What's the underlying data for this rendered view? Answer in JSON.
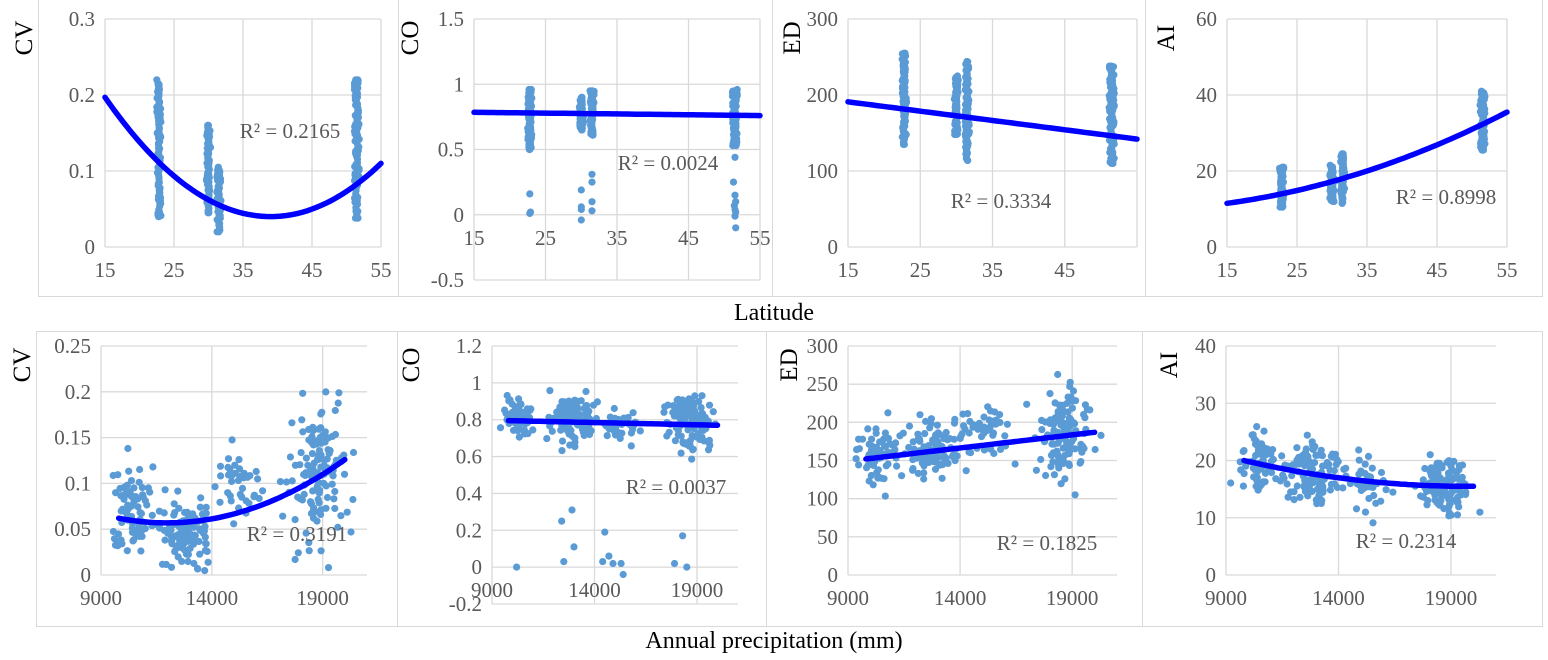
{
  "figure": {
    "row_labels": [
      "Latitude",
      "Annual precipitation (mm)"
    ]
  },
  "colors": {
    "points": "#5b9bd5",
    "trendline": "#0000ff",
    "grid": "#d9d9d9",
    "tick_text": "#595959",
    "axis_title": "#000000"
  },
  "chart_data": [
    {
      "type": "scatter",
      "ylabel": "CV",
      "xlabel": "Latitude",
      "xlim": [
        15,
        55
      ],
      "xticks": [
        15,
        25,
        35,
        45,
        55
      ],
      "ylim": [
        0,
        0.3
      ],
      "yticks": [
        0,
        0.1,
        0.2,
        0.3
      ],
      "r2_label": "R² = 0.2165",
      "trend": {
        "kind": "quadratic",
        "points": [
          [
            15,
            0.197
          ],
          [
            39,
            0.04
          ],
          [
            55,
            0.11
          ]
        ]
      },
      "clusters": [
        {
          "x": 22.8,
          "xspread": 0.3,
          "ymin": 0.04,
          "ymax": 0.22,
          "n": 60
        },
        {
          "x": 30,
          "xspread": 0.3,
          "ymin": 0.045,
          "ymax": 0.16,
          "n": 30
        },
        {
          "x": 31.5,
          "xspread": 0.3,
          "ymin": 0.02,
          "ymax": 0.105,
          "n": 35
        },
        {
          "x": 51.5,
          "xspread": 0.35,
          "ymin": 0.038,
          "ymax": 0.22,
          "n": 70
        }
      ]
    },
    {
      "type": "scatter",
      "ylabel": "CO",
      "xlabel": "Latitude",
      "xlim": [
        15,
        55
      ],
      "xticks": [
        15,
        25,
        35,
        45,
        55
      ],
      "ylim": [
        -0.5,
        1.5
      ],
      "yticks": [
        -0.5,
        0,
        0.5,
        1,
        1.5
      ],
      "r2_label": "R² = 0.0024",
      "trend": {
        "kind": "linear",
        "points": [
          [
            15,
            0.785
          ],
          [
            55,
            0.76
          ]
        ]
      },
      "clusters": [
        {
          "x": 22.8,
          "xspread": 0.3,
          "ymin": 0.5,
          "ymax": 0.96,
          "n": 50
        },
        {
          "x": 30,
          "xspread": 0.3,
          "ymin": 0.65,
          "ymax": 0.9,
          "n": 25
        },
        {
          "x": 31.5,
          "xspread": 0.3,
          "ymin": 0.61,
          "ymax": 0.95,
          "n": 30
        },
        {
          "x": 51.5,
          "xspread": 0.35,
          "ymin": 0.53,
          "ymax": 0.96,
          "n": 60
        }
      ],
      "outliers": [
        [
          22.8,
          0.16
        ],
        [
          22.8,
          0.01
        ],
        [
          22.9,
          0.02
        ],
        [
          30,
          0.19
        ],
        [
          30,
          0.06
        ],
        [
          30,
          0.04
        ],
        [
          30,
          -0.04
        ],
        [
          31.5,
          0.31
        ],
        [
          31.5,
          0.25
        ],
        [
          31.5,
          0.1
        ],
        [
          31.5,
          0.03
        ],
        [
          51.5,
          0.44
        ],
        [
          51.3,
          0.25
        ],
        [
          51.5,
          0.15
        ],
        [
          51.6,
          0.1
        ],
        [
          51.4,
          0.07
        ],
        [
          51.5,
          0.04
        ],
        [
          51.6,
          0.02
        ],
        [
          51.5,
          -0.01
        ],
        [
          51.6,
          -0.1
        ]
      ]
    },
    {
      "type": "scatter",
      "ylabel": "ED",
      "xlabel": "Latitude",
      "xlim": [
        15,
        55
      ],
      "xticks": [
        15,
        25,
        35,
        45
      ],
      "ylim": [
        0,
        300
      ],
      "yticks": [
        0,
        100,
        200,
        300
      ],
      "r2_label": "R² = 0.3334",
      "trend": {
        "kind": "linear",
        "points": [
          [
            15,
            191
          ],
          [
            55,
            142
          ]
        ]
      },
      "clusters": [
        {
          "x": 22.8,
          "xspread": 0.3,
          "ymin": 135,
          "ymax": 255,
          "n": 55
        },
        {
          "x": 30,
          "xspread": 0.3,
          "ymin": 148,
          "ymax": 225,
          "n": 30
        },
        {
          "x": 31.5,
          "xspread": 0.3,
          "ymin": 114,
          "ymax": 244,
          "n": 40
        },
        {
          "x": 51.5,
          "xspread": 0.35,
          "ymin": 110,
          "ymax": 238,
          "n": 65
        }
      ]
    },
    {
      "type": "scatter",
      "ylabel": "AI",
      "xlabel": "Latitude",
      "xlim": [
        15,
        55
      ],
      "xticks": [
        15,
        25,
        35,
        45,
        55
      ],
      "ylim": [
        0,
        60
      ],
      "yticks": [
        0,
        20,
        40,
        60
      ],
      "r2_label": "R² = 0.8998",
      "trend": {
        "kind": "quadratic",
        "points": [
          [
            15,
            11.5
          ],
          [
            35,
            20
          ],
          [
            55,
            35.5
          ]
        ]
      },
      "clusters": [
        {
          "x": 22.8,
          "xspread": 0.3,
          "ymin": 10.5,
          "ymax": 21,
          "n": 45
        },
        {
          "x": 30,
          "xspread": 0.3,
          "ymin": 12,
          "ymax": 21.5,
          "n": 25
        },
        {
          "x": 31.5,
          "xspread": 0.3,
          "ymin": 11.5,
          "ymax": 24.5,
          "n": 30
        },
        {
          "x": 51.5,
          "xspread": 0.35,
          "ymin": 25.5,
          "ymax": 41,
          "n": 60
        }
      ]
    },
    {
      "type": "scatter",
      "ylabel": "CV",
      "xlabel": "Annual precipitation (mm)",
      "xlim": [
        9000,
        21000
      ],
      "xticks": [
        9000,
        14000,
        19000
      ],
      "ylim": [
        0,
        0.25
      ],
      "yticks": [
        0,
        0.05,
        0.1,
        0.15,
        0.2,
        0.25
      ],
      "r2_label": "R² = 0.3191",
      "trend": {
        "kind": "quadratic",
        "points": [
          [
            9800,
            0.062
          ],
          [
            12300,
            0.057
          ],
          [
            20000,
            0.126
          ]
        ]
      },
      "clusters": [
        {
          "cx": 10400,
          "sx": 450,
          "cy": 0.072,
          "sy": 0.022,
          "n": 70
        },
        {
          "cx": 12800,
          "sx": 600,
          "cy": 0.045,
          "sy": 0.016,
          "n": 120
        },
        {
          "cx": 15200,
          "sx": 500,
          "cy": 0.1,
          "sy": 0.025,
          "n": 40
        },
        {
          "cx": 18800,
          "sx": 650,
          "cy": 0.11,
          "sy": 0.04,
          "n": 130
        }
      ]
    },
    {
      "type": "scatter",
      "ylabel": "CO",
      "xlabel": "Annual precipitation (mm)",
      "xlim": [
        9000,
        21000
      ],
      "xticks": [
        9000,
        14000,
        19000
      ],
      "ylim": [
        -0.2,
        1.2
      ],
      "yticks": [
        -0.2,
        0,
        0.2,
        0.4,
        0.6,
        0.8,
        1,
        1.2
      ],
      "r2_label": "R² = 0.0037",
      "trend": {
        "kind": "linear",
        "points": [
          [
            9800,
            0.795
          ],
          [
            20000,
            0.77
          ]
        ]
      },
      "clusters": [
        {
          "cx": 10300,
          "sx": 400,
          "cy": 0.82,
          "sy": 0.05,
          "n": 60
        },
        {
          "cx": 12900,
          "sx": 600,
          "cy": 0.82,
          "sy": 0.06,
          "n": 110
        },
        {
          "cx": 15300,
          "sx": 450,
          "cy": 0.78,
          "sy": 0.05,
          "n": 40
        },
        {
          "cx": 18700,
          "sx": 550,
          "cy": 0.8,
          "sy": 0.08,
          "n": 120
        }
      ],
      "outliers": [
        [
          10200,
          0.0
        ],
        [
          12400,
          0.25
        ],
        [
          12500,
          0.03
        ],
        [
          12900,
          0.31
        ],
        [
          13000,
          0.11
        ],
        [
          14500,
          0.19
        ],
        [
          14400,
          0.03
        ],
        [
          14700,
          0.06
        ],
        [
          14900,
          0.02
        ],
        [
          15300,
          0.02
        ],
        [
          15400,
          -0.04
        ],
        [
          17900,
          0.02
        ],
        [
          18300,
          0.17
        ],
        [
          18500,
          0.0
        ]
      ]
    },
    {
      "type": "scatter",
      "ylabel": "ED",
      "xlabel": "Annual precipitation (mm)",
      "xlim": [
        9000,
        21000
      ],
      "xticks": [
        9000,
        14000,
        19000
      ],
      "ylim": [
        0,
        300
      ],
      "yticks": [
        0,
        50,
        100,
        150,
        200,
        250,
        300
      ],
      "r2_label": "R² = 0.1825",
      "trend": {
        "kind": "linear",
        "points": [
          [
            9800,
            152
          ],
          [
            20000,
            187
          ]
        ]
      },
      "clusters": [
        {
          "cx": 10400,
          "sx": 450,
          "cy": 158,
          "sy": 17,
          "n": 60
        },
        {
          "cx": 12900,
          "sx": 650,
          "cy": 165,
          "sy": 20,
          "n": 110
        },
        {
          "cx": 15200,
          "sx": 500,
          "cy": 190,
          "sy": 20,
          "n": 40
        },
        {
          "cx": 18700,
          "sx": 600,
          "cy": 185,
          "sy": 27,
          "n": 120
        }
      ]
    },
    {
      "type": "scatter",
      "ylabel": "AI",
      "xlabel": "Annual precipitation (mm)",
      "xlim": [
        9000,
        21000
      ],
      "xticks": [
        9000,
        14000,
        19000
      ],
      "ylim": [
        0,
        40
      ],
      "yticks": [
        0,
        10,
        20,
        30,
        40
      ],
      "r2_label": "R² = 0.2314",
      "trend": {
        "kind": "quadratic",
        "points": [
          [
            9800,
            20
          ],
          [
            15000,
            16.5
          ],
          [
            20000,
            15.5
          ]
        ]
      },
      "clusters": [
        {
          "cx": 10400,
          "sx": 450,
          "cy": 20,
          "sy": 3,
          "n": 60
        },
        {
          "cx": 12900,
          "sx": 600,
          "cy": 17.5,
          "sy": 2.7,
          "n": 110
        },
        {
          "cx": 15300,
          "sx": 450,
          "cy": 16,
          "sy": 2.3,
          "n": 40
        },
        {
          "cx": 18700,
          "sx": 550,
          "cy": 15.5,
          "sy": 2.5,
          "n": 120
        }
      ]
    }
  ]
}
